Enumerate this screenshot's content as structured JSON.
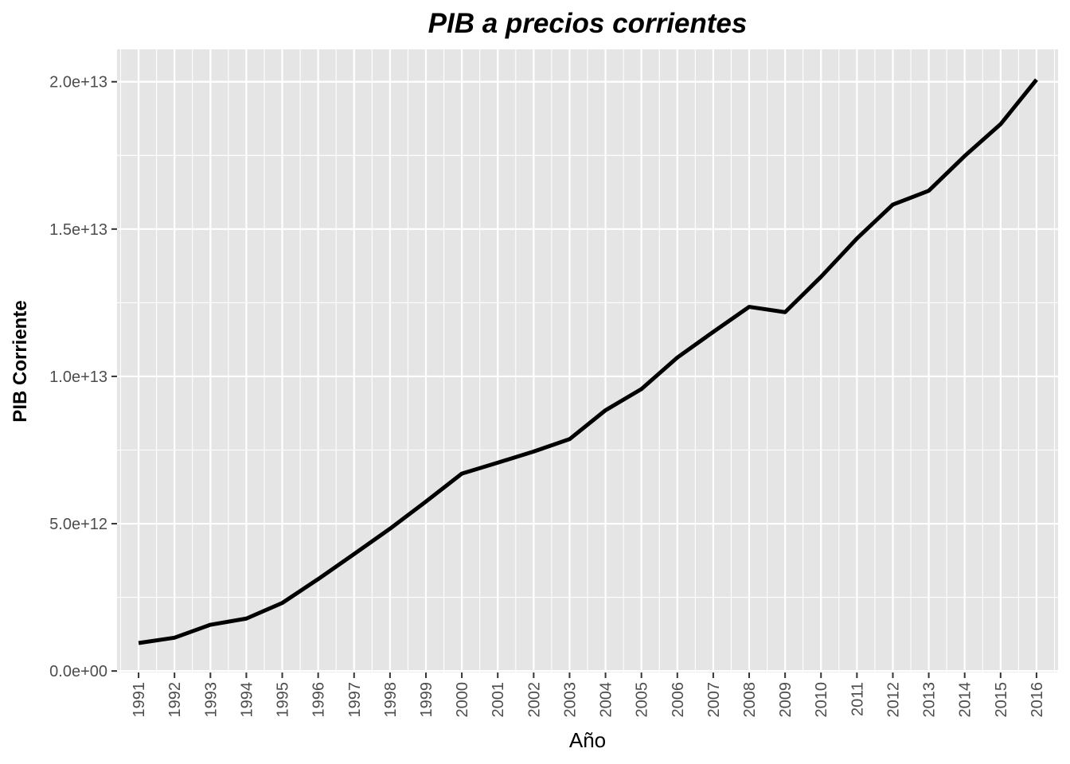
{
  "chart_data": {
    "type": "line",
    "title": "PIB a precios corrientes",
    "xlabel": "Año",
    "ylabel": "PIB Corriente",
    "x": [
      "1991",
      "1992",
      "1993",
      "1994",
      "1995",
      "1996",
      "1997",
      "1998",
      "1999",
      "2000",
      "2001",
      "2002",
      "2003",
      "2004",
      "2005",
      "2006",
      "2007",
      "2008",
      "2009",
      "2010",
      "2011",
      "2012",
      "2013",
      "2014",
      "2015",
      "2016"
    ],
    "series": [
      {
        "values": [
          950000000000.0,
          1130000000000.0,
          1570000000000.0,
          1780000000000.0,
          2310000000000.0,
          3120000000000.0,
          3970000000000.0,
          4830000000000.0,
          5750000000000.0,
          6700000000000.0,
          7070000000000.0,
          7450000000000.0,
          7870000000000.0,
          8850000000000.0,
          9570000000000.0,
          10640000000000.0,
          11510000000000.0,
          12360000000000.0,
          12180000000000.0,
          13380000000000.0,
          14680000000000.0,
          15830000000000.0,
          16300000000000.0,
          17480000000000.0,
          18560000000000.0,
          20070000000000.0
        ],
        "color": "#000000"
      }
    ],
    "yticks": [
      0,
      5000000000000.0,
      10000000000000.0,
      15000000000000.0,
      20000000000000.0
    ],
    "ytick_labels": [
      "0.0e+00",
      "5.0e+12",
      "1.0e+13",
      "1.5e+13",
      "2.0e+13"
    ],
    "ylim": [
      -50000000000.0,
      21100000000000.0
    ],
    "grid": true,
    "panel_background": "#e5e5e5",
    "grid_color": "#ffffff"
  }
}
